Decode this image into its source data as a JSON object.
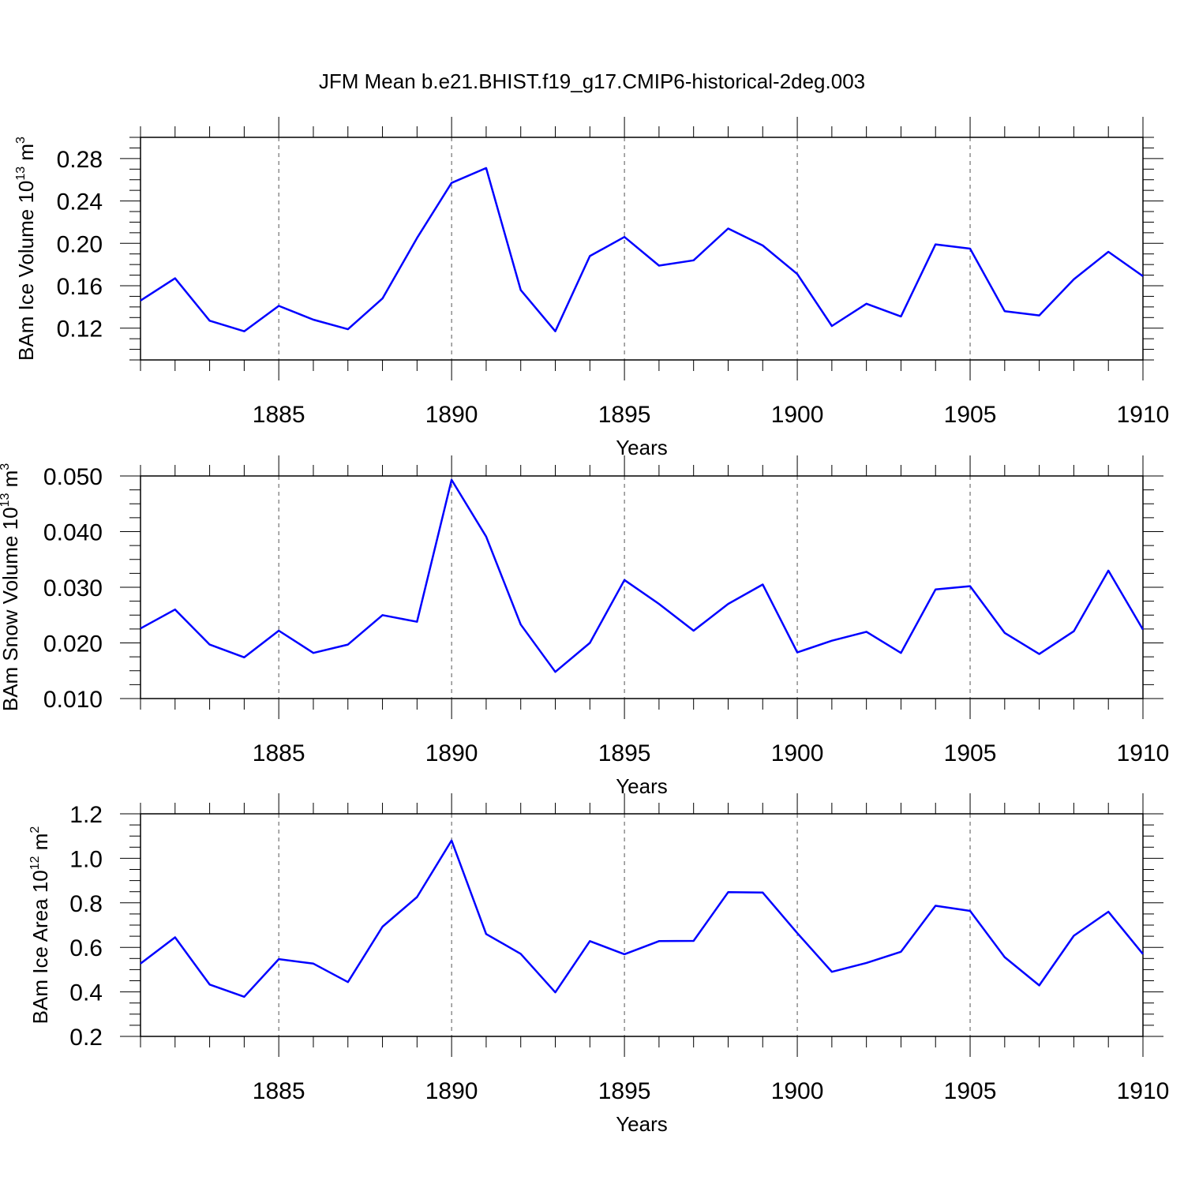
{
  "title": "JFM Mean b.e21.BHIST.f19_g17.CMIP6-historical-2deg.003",
  "line_color": "#0000ff",
  "chart_data": [
    {
      "type": "line",
      "xlabel": "Years",
      "ylabel": {
        "prefix": "BAm Ice Volume 10",
        "exp": "13",
        "unit": " m",
        "unit_exp": "3"
      },
      "xlim": [
        1881,
        1910
      ],
      "ylim": [
        0.09,
        0.3
      ],
      "x_ticks": [
        "1885",
        "1890",
        "1895",
        "1900",
        "1905",
        "1910"
      ],
      "y_ticks": [
        "0.12",
        "0.16",
        "0.20",
        "0.24",
        "0.28"
      ],
      "x": [
        1881,
        1882,
        1883,
        1884,
        1885,
        1886,
        1887,
        1888,
        1889,
        1890,
        1891,
        1892,
        1893,
        1894,
        1895,
        1896,
        1897,
        1898,
        1899,
        1900,
        1901,
        1902,
        1903,
        1904,
        1905,
        1906,
        1907,
        1908,
        1909,
        1910
      ],
      "values": [
        0.146,
        0.167,
        0.127,
        0.117,
        0.141,
        0.128,
        0.119,
        0.148,
        0.205,
        0.257,
        0.271,
        0.156,
        0.117,
        0.188,
        0.206,
        0.179,
        0.184,
        0.214,
        0.198,
        0.171,
        0.122,
        0.143,
        0.131,
        0.199,
        0.195,
        0.136,
        0.132,
        0.166,
        0.192,
        0.169
      ]
    },
    {
      "type": "line",
      "xlabel": "Years",
      "ylabel": {
        "prefix": "BAm Snow Volume 10",
        "exp": "13",
        "unit": " m",
        "unit_exp": "3"
      },
      "xlim": [
        1881,
        1910
      ],
      "ylim": [
        0.01,
        0.05
      ],
      "x_ticks": [
        "1885",
        "1890",
        "1895",
        "1900",
        "1905",
        "1910"
      ],
      "y_ticks": [
        "0.010",
        "0.020",
        "0.030",
        "0.040",
        "0.050"
      ],
      "x": [
        1881,
        1882,
        1883,
        1884,
        1885,
        1886,
        1887,
        1888,
        1889,
        1890,
        1891,
        1892,
        1893,
        1894,
        1895,
        1896,
        1897,
        1898,
        1899,
        1900,
        1901,
        1902,
        1903,
        1904,
        1905,
        1906,
        1907,
        1908,
        1909,
        1910
      ],
      "values": [
        0.0226,
        0.026,
        0.0197,
        0.0174,
        0.0222,
        0.0182,
        0.0197,
        0.025,
        0.0238,
        0.0493,
        0.0391,
        0.0233,
        0.0148,
        0.02,
        0.0313,
        0.027,
        0.0222,
        0.027,
        0.0305,
        0.0183,
        0.0204,
        0.022,
        0.0182,
        0.0296,
        0.0302,
        0.0218,
        0.018,
        0.0221,
        0.033,
        0.0224
      ]
    },
    {
      "type": "line",
      "xlabel": "Years",
      "ylabel": {
        "prefix": "BAm Ice Area 10",
        "exp": "12",
        "unit": " m",
        "unit_exp": "2"
      },
      "xlim": [
        1881,
        1910
      ],
      "ylim": [
        0.2,
        1.2
      ],
      "x_ticks": [
        "1885",
        "1890",
        "1895",
        "1900",
        "1905",
        "1910"
      ],
      "y_ticks": [
        "0.2",
        "0.4",
        "0.6",
        "0.8",
        "1.0",
        "1.2"
      ],
      "x": [
        1881,
        1882,
        1883,
        1884,
        1885,
        1886,
        1887,
        1888,
        1889,
        1890,
        1891,
        1892,
        1893,
        1894,
        1895,
        1896,
        1897,
        1898,
        1899,
        1900,
        1901,
        1902,
        1903,
        1904,
        1905,
        1906,
        1907,
        1908,
        1909,
        1910
      ],
      "values": [
        0.527,
        0.645,
        0.433,
        0.378,
        0.547,
        0.527,
        0.444,
        0.693,
        0.826,
        1.08,
        0.66,
        0.571,
        0.398,
        0.628,
        0.569,
        0.628,
        0.629,
        0.848,
        0.846,
        0.664,
        0.49,
        0.53,
        0.58,
        0.787,
        0.764,
        0.556,
        0.429,
        0.652,
        0.76,
        0.57
      ]
    }
  ]
}
